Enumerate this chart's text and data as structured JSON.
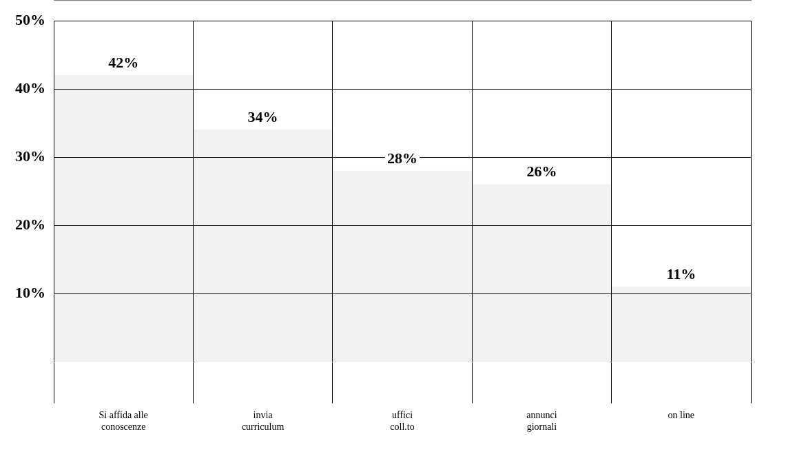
{
  "chart_data": {
    "type": "bar",
    "categories": [
      "Si affida alle conoscenze",
      "invia curriculum",
      "uffici coll.to",
      "annunci giornali",
      "on line"
    ],
    "values": [
      42,
      34,
      28,
      26,
      11
    ],
    "value_labels": [
      "42%",
      "34%",
      "28%",
      "26%",
      "11%"
    ],
    "color": "#f2f2f2",
    "ylim": [
      0,
      50
    ],
    "yticks": [
      {
        "value": 10,
        "label": "10%"
      },
      {
        "value": 20,
        "label": "20%"
      },
      {
        "value": 30,
        "label": "30%"
      },
      {
        "value": 40,
        "label": "40%"
      },
      {
        "value": 50,
        "label": "50%"
      }
    ],
    "grid": true,
    "legend": false
  }
}
